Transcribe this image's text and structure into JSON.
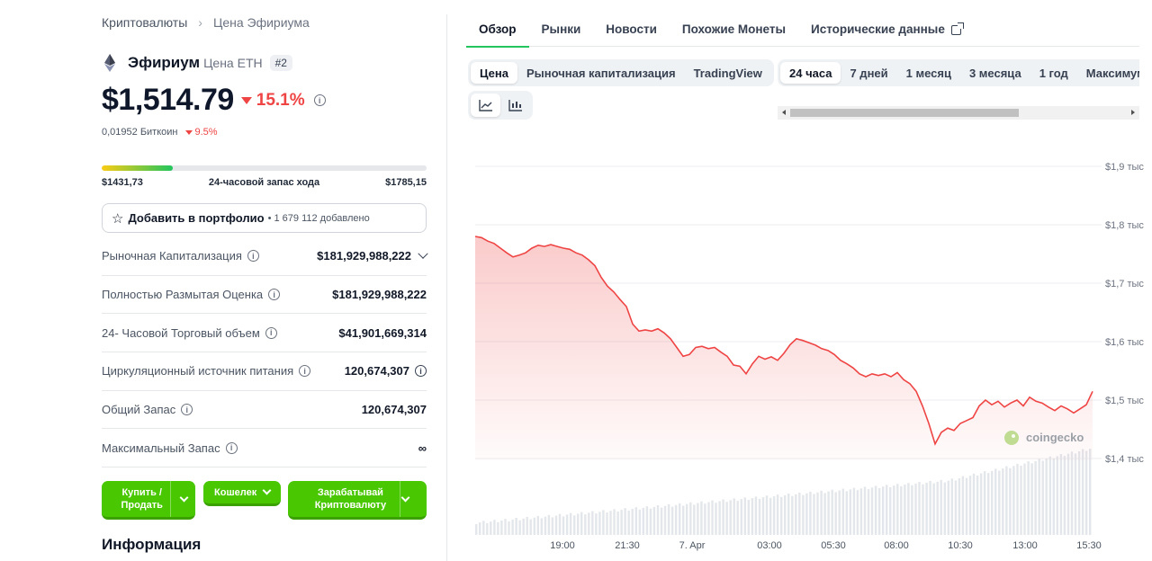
{
  "breadcrumb": {
    "root": "Криптовалюты",
    "current": "Цена Эфириума"
  },
  "coin": {
    "name": "Эфириум",
    "symbol_label": "Цена ETH",
    "rank": "#2"
  },
  "price": {
    "value": "$1,514.79",
    "change_24h": "15.1%",
    "change_direction": "down"
  },
  "btc": {
    "value": "0,01952 Биткоин",
    "change": "9.5%"
  },
  "range": {
    "low": "$1431,73",
    "label": "24-часовой запас хода",
    "high": "$1785,15",
    "position_fraction": 0.22
  },
  "portfolio": {
    "label": "Добавить в портфолио",
    "count": "• 1 679 112 добавлено"
  },
  "stats": [
    {
      "label": "Рыночная Капитализация",
      "value": "$181,929,988,222"
    },
    {
      "label": "Полностью Размытая Оценка",
      "value": "$181,929,988,222"
    },
    {
      "label": "24- Часовой Торговый объем",
      "value": "$41,901,669,314"
    },
    {
      "label": "Циркуляционный источник питания",
      "value": "120,674,307"
    },
    {
      "label": "Общий Запас",
      "value": "120,674,307"
    },
    {
      "label": "Максимальный Запас",
      "value": "∞"
    }
  ],
  "actions": {
    "buy": "Купить / Продать",
    "wallet": "Кошелек",
    "earn": "Зарабатывай Криптовалюту"
  },
  "info_title": "Информация",
  "tabs": [
    "Обзор",
    "Рынки",
    "Новости",
    "Похожие Монеты",
    "Исторические данные"
  ],
  "chart_type_tabs": [
    "Цена",
    "Рыночная капитализация",
    "TradingView"
  ],
  "period_tabs": [
    "24 часа",
    "7 дней",
    "1 месяц",
    "3 месяца",
    "1 год",
    "Максимум"
  ],
  "watermark": "coingecko",
  "colors": {
    "accent_green": "#49c700",
    "down_red": "#ef4444",
    "line": "#ef4444"
  },
  "chart_data": {
    "type": "area",
    "title": "",
    "y_ticks": [
      "$1,9 тыс",
      "$1,8 тыс",
      "$1,7 тыс",
      "$1,6 тыс",
      "$1,5 тыс",
      "$1,4 тыс"
    ],
    "x_ticks": [
      "19:00",
      "21:30",
      "7. Apr",
      "03:00",
      "05:30",
      "08:00",
      "10:30",
      "13:00",
      "15:30"
    ],
    "ylim": [
      1400,
      1900
    ],
    "series": [
      {
        "values": [
          1780,
          1778,
          1772,
          1768,
          1760,
          1752,
          1745,
          1748,
          1752,
          1760,
          1765,
          1763,
          1766,
          1763,
          1760,
          1758,
          1752,
          1748,
          1740,
          1730,
          1710,
          1695,
          1685,
          1672,
          1660,
          1630,
          1618,
          1620,
          1618,
          1622,
          1615,
          1605,
          1590,
          1575,
          1578,
          1590,
          1592,
          1588,
          1590,
          1582,
          1575,
          1560,
          1558,
          1545,
          1562,
          1575,
          1570,
          1574,
          1568,
          1580,
          1595,
          1605,
          1602,
          1598,
          1594,
          1588,
          1585,
          1578,
          1568,
          1562,
          1555,
          1545,
          1540,
          1545,
          1542,
          1545,
          1540,
          1547,
          1535,
          1528,
          1515,
          1490,
          1460,
          1425,
          1445,
          1452,
          1448,
          1460,
          1465,
          1470,
          1490,
          1500,
          1492,
          1498,
          1488,
          1495,
          1500,
          1490,
          1505,
          1498,
          1495,
          1488,
          1482,
          1490,
          1485,
          1478,
          1485,
          1492,
          1515
        ]
      }
    ],
    "volume": "increasing bars across the period"
  }
}
